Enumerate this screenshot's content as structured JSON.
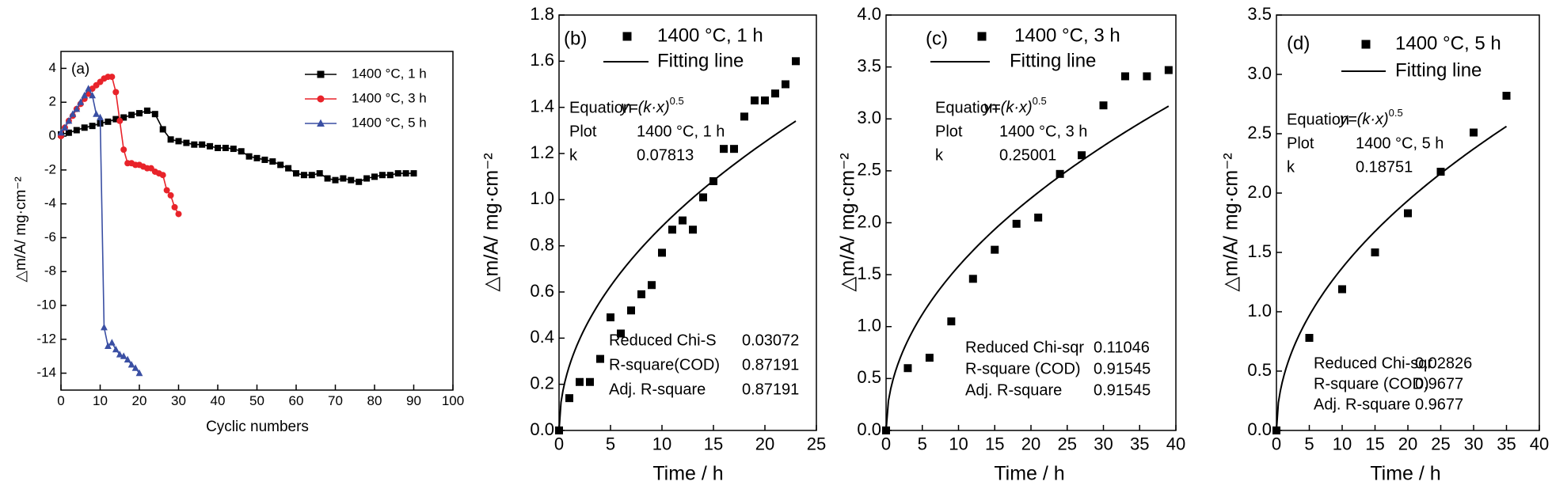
{
  "chart_data": [
    {
      "type": "line",
      "panel": "(a)",
      "xlabel": "Cyclic numbers",
      "ylabel": "△m/A/ mg·cm⁻²",
      "xlim": [
        0,
        100
      ],
      "ylim": [
        -15,
        5
      ],
      "xticks": [
        0,
        10,
        20,
        30,
        40,
        50,
        60,
        70,
        80,
        90,
        100
      ],
      "yticks": [
        4,
        2,
        0,
        -2,
        -4,
        -6,
        -8,
        -10,
        -12,
        -14
      ],
      "legend": "upper right",
      "series": [
        {
          "name": "1400 °C, 1 h",
          "color": "#000000",
          "marker": "square",
          "x": [
            0,
            2,
            4,
            6,
            8,
            10,
            12,
            14,
            16,
            18,
            20,
            22,
            24,
            26,
            28,
            30,
            32,
            34,
            36,
            38,
            40,
            42,
            44,
            46,
            48,
            50,
            52,
            54,
            56,
            58,
            60,
            62,
            64,
            66,
            68,
            70,
            72,
            74,
            76,
            78,
            80,
            82,
            84,
            86,
            88,
            90
          ],
          "values": [
            0.1,
            0.2,
            0.35,
            0.5,
            0.6,
            0.75,
            0.85,
            1.0,
            1.1,
            1.25,
            1.35,
            1.5,
            1.3,
            0.4,
            -0.2,
            -0.3,
            -0.4,
            -0.5,
            -0.5,
            -0.6,
            -0.7,
            -0.7,
            -0.75,
            -0.9,
            -1.2,
            -1.3,
            -1.4,
            -1.5,
            -1.7,
            -1.9,
            -2.2,
            -2.3,
            -2.3,
            -2.2,
            -2.5,
            -2.6,
            -2.5,
            -2.6,
            -2.7,
            -2.5,
            -2.4,
            -2.3,
            -2.3,
            -2.2,
            -2.2,
            -2.2
          ]
        },
        {
          "name": "1400 °C, 3 h",
          "color": "#e8232a",
          "marker": "circle",
          "x": [
            0,
            1,
            2,
            3,
            4,
            5,
            6,
            7,
            8,
            9,
            10,
            11,
            12,
            13,
            14,
            15,
            16,
            17,
            18,
            19,
            20,
            21,
            22,
            23,
            24,
            25,
            26,
            27,
            28,
            29,
            30
          ],
          "values": [
            0,
            0.5,
            0.9,
            1.2,
            1.6,
            1.9,
            2.2,
            2.5,
            2.8,
            3.0,
            3.2,
            3.4,
            3.5,
            3.5,
            2.6,
            0.9,
            -0.8,
            -1.6,
            -1.6,
            -1.7,
            -1.7,
            -1.8,
            -1.9,
            -1.9,
            -2.1,
            -2.2,
            -2.3,
            -3.2,
            -3.5,
            -4.2,
            -4.6
          ]
        },
        {
          "name": "1400 °C, 5 h",
          "color": "#3a4fa3",
          "marker": "triangle",
          "x": [
            0,
            1,
            2,
            3,
            4,
            5,
            6,
            7,
            8,
            9,
            10,
            11,
            12,
            13,
            14,
            15,
            16,
            17,
            18,
            19,
            20
          ],
          "values": [
            0.2,
            0.5,
            0.9,
            1.3,
            1.6,
            2.0,
            2.4,
            2.8,
            2.4,
            1.3,
            1.1,
            -11.3,
            -12.4,
            -12.2,
            -12.6,
            -12.9,
            -13.0,
            -13.2,
            -13.5,
            -13.7,
            -14.0
          ]
        }
      ]
    },
    {
      "type": "scatter",
      "panel": "(b)",
      "xlabel": "Time / h",
      "ylabel": "△m/A/ mg·cm⁻²",
      "xlim": [
        0,
        25
      ],
      "ylim": [
        0,
        1.8
      ],
      "xticks": [
        0,
        5,
        10,
        15,
        20,
        25
      ],
      "yticks": [
        {
          "value": 0,
          "label": "0.0"
        },
        0.2,
        0.4,
        0.6,
        0.8,
        {
          "value": 1,
          "label": "1.0"
        },
        1.2,
        1.4,
        1.6,
        1.8
      ],
      "series": [
        {
          "name": "1400 °C, 1 h",
          "color": "#000000",
          "marker": "square",
          "x": [
            0,
            1,
            2,
            3,
            4,
            5,
            6,
            7,
            8,
            9,
            10,
            11,
            12,
            13,
            14,
            15,
            16,
            17,
            18,
            19,
            20,
            21,
            22,
            23
          ],
          "values": [
            0,
            0.14,
            0.21,
            0.21,
            0.31,
            0.49,
            0.42,
            0.52,
            0.59,
            0.63,
            0.77,
            0.87,
            0.91,
            0.87,
            1.01,
            1.08,
            1.22,
            1.22,
            1.36,
            1.43,
            1.43,
            1.46,
            1.5,
            1.6
          ]
        }
      ],
      "fit": {
        "name": "Fitting line",
        "color": "#000000",
        "equation_label": "Equation",
        "equation": "y=(k·x)",
        "equation_power": "0.5",
        "plot_label": "Plot",
        "plot": "1400 °C, 1 h",
        "k_label": "k",
        "k": 0.07813
      },
      "stats": [
        {
          "label": "Reduced Chi-S",
          "value": 0.03072
        },
        {
          "label": "R-square(COD)",
          "value": 0.87191
        },
        {
          "label": "Adj. R-square",
          "value": 0.87191
        }
      ]
    },
    {
      "type": "scatter",
      "panel": "(c)",
      "xlabel": "Time / h",
      "ylabel": "△m/A/ mg·cm⁻²",
      "xlim": [
        0,
        40
      ],
      "ylim": [
        0,
        4
      ],
      "xticks": [
        0,
        5,
        10,
        15,
        20,
        25,
        30,
        35,
        40
      ],
      "yticks": [
        {
          "value": 0,
          "label": "0.0"
        },
        0.5,
        {
          "value": 1,
          "label": "1.0"
        },
        1.5,
        {
          "value": 2,
          "label": "2.0"
        },
        2.5,
        {
          "value": 3,
          "label": "3.0"
        },
        3.5,
        {
          "value": 4,
          "label": "4.0"
        }
      ],
      "series": [
        {
          "name": "1400 °C, 3 h",
          "color": "#000000",
          "marker": "square",
          "x": [
            0,
            3,
            6,
            9,
            12,
            15,
            18,
            21,
            24,
            27,
            30,
            33,
            36,
            39
          ],
          "values": [
            0,
            0.6,
            0.7,
            1.05,
            1.46,
            1.74,
            1.99,
            2.05,
            2.47,
            2.65,
            3.13,
            3.41,
            3.41,
            3.47
          ]
        }
      ],
      "fit": {
        "name": "Fitting line",
        "color": "#000000",
        "equation_label": "Equation",
        "equation": "y=(k·x)",
        "equation_power": "0.5",
        "plot_label": "Plot",
        "plot": "1400 °C, 3 h",
        "k_label": "k",
        "k": 0.25001
      },
      "stats": [
        {
          "label": "Reduced Chi-sqr",
          "value": 0.11046
        },
        {
          "label": "R-square (COD)",
          "value": 0.91545
        },
        {
          "label": "Adj. R-square",
          "value": 0.91545
        }
      ]
    },
    {
      "type": "scatter",
      "panel": "(d)",
      "xlabel": "Time / h",
      "ylabel": "△m/A/ mg·cm⁻²",
      "xlim": [
        0,
        40
      ],
      "ylim": [
        0,
        3.5
      ],
      "xticks": [
        0,
        5,
        10,
        15,
        20,
        25,
        30,
        35,
        40
      ],
      "yticks": [
        {
          "value": 0,
          "label": "0.0"
        },
        0.5,
        {
          "value": 1,
          "label": "1.0"
        },
        1.5,
        {
          "value": 2,
          "label": "2.0"
        },
        2.5,
        {
          "value": 3,
          "label": "3.0"
        },
        3.5
      ],
      "series": [
        {
          "name": "1400 °C, 5 h",
          "color": "#000000",
          "marker": "square",
          "x": [
            0,
            5,
            10,
            15,
            20,
            25,
            30,
            35
          ],
          "values": [
            0,
            0.78,
            1.19,
            1.5,
            1.83,
            2.18,
            2.51,
            2.82
          ]
        }
      ],
      "fit": {
        "name": "Fitting line",
        "color": "#000000",
        "equation_label": "Equation",
        "equation": "y=(k·x)",
        "equation_power": "0.5",
        "plot_label": "Plot",
        "plot": "1400 °C, 5 h",
        "k_label": "k",
        "k": 0.18751
      },
      "stats": [
        {
          "label": "Reduced Chi-sqr",
          "value": 0.02826
        },
        {
          "label": "R-square (COD)",
          "value": 0.9677
        },
        {
          "label": "Adj. R-square",
          "value": 0.9677
        }
      ]
    }
  ]
}
